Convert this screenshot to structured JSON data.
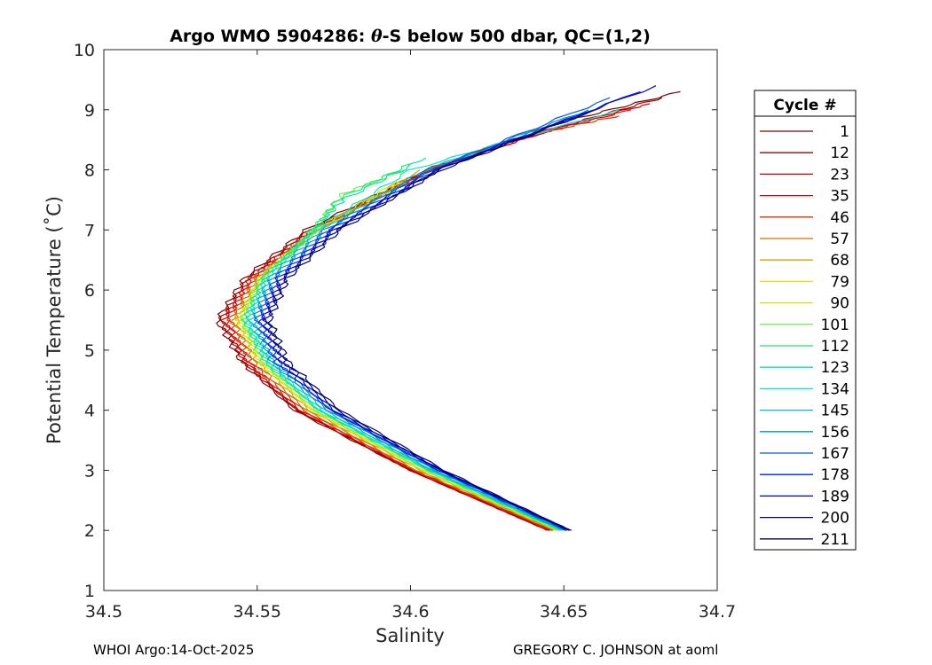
{
  "chart_data": {
    "type": "line",
    "title_parts": [
      "Argo WMO 5904286: ",
      "θ",
      "-S below 500 dbar,  QC=(1,2)"
    ],
    "xlabel": "Salinity",
    "ylabel": "Potential Temperature (˚C)",
    "xlim": [
      34.5,
      34.7
    ],
    "ylim": [
      1,
      10
    ],
    "xticks": [
      34.5,
      34.55,
      34.6,
      34.65,
      34.7
    ],
    "xtick_labels": [
      "34.5",
      "34.55",
      "34.6",
      "34.65",
      "34.7"
    ],
    "yticks": [
      1,
      2,
      3,
      4,
      5,
      6,
      7,
      8,
      9,
      10
    ],
    "ytick_labels": [
      "1",
      "2",
      "3",
      "4",
      "5",
      "6",
      "7",
      "8",
      "9",
      "10"
    ],
    "grid": true,
    "legend_title": "Cycle #",
    "legend_position": "right-outside",
    "series": [
      {
        "name": "1",
        "color": "#7f0000",
        "theta": [
          2.0,
          3.0,
          4.0,
          4.8,
          5.5,
          6.2,
          7.0,
          8.0,
          8.8,
          9.3
        ],
        "salinity": [
          34.645,
          34.6,
          34.562,
          34.545,
          34.537,
          34.546,
          34.566,
          34.605,
          34.65,
          34.688
        ]
      },
      {
        "name": "12",
        "color": "#9f0000",
        "theta": [
          2.0,
          3.0,
          4.0,
          4.8,
          5.5,
          6.2,
          7.0,
          8.0,
          8.7,
          9.2
        ],
        "salinity": [
          34.645,
          34.6,
          34.563,
          34.546,
          34.538,
          34.547,
          34.567,
          34.606,
          34.648,
          34.682
        ]
      },
      {
        "name": "23",
        "color": "#bf0000",
        "theta": [
          2.0,
          3.0,
          4.0,
          4.8,
          5.5,
          6.2,
          7.0,
          8.0,
          8.7,
          9.1
        ],
        "salinity": [
          34.645,
          34.6,
          34.563,
          34.546,
          34.539,
          34.548,
          34.568,
          34.607,
          34.647,
          34.678
        ]
      },
      {
        "name": "35",
        "color": "#df0000",
        "theta": [
          2.0,
          3.0,
          4.0,
          4.8,
          5.5,
          6.2,
          7.0,
          8.0,
          8.6,
          9.0
        ],
        "salinity": [
          34.646,
          34.601,
          34.564,
          34.547,
          34.54,
          34.548,
          34.568,
          34.606,
          34.642,
          34.672
        ]
      },
      {
        "name": "46",
        "color": "#e03000",
        "theta": [
          2.0,
          3.0,
          4.0,
          4.8,
          5.5,
          6.2,
          7.0,
          8.0,
          8.6,
          8.9
        ],
        "salinity": [
          34.646,
          34.601,
          34.565,
          34.548,
          34.541,
          34.549,
          34.569,
          34.607,
          34.641,
          34.668
        ]
      },
      {
        "name": "57",
        "color": "#c87000",
        "theta": [
          2.0,
          3.0,
          4.0,
          4.8,
          5.5,
          6.2,
          7.0,
          8.0,
          8.5
        ],
        "salinity": [
          34.647,
          34.602,
          34.566,
          34.549,
          34.542,
          34.55,
          34.569,
          34.605,
          34.635
        ]
      },
      {
        "name": "68",
        "color": "#d0a000",
        "theta": [
          2.0,
          3.0,
          4.0,
          4.8,
          5.5,
          6.2,
          7.0,
          8.0
        ],
        "salinity": [
          34.647,
          34.603,
          34.567,
          34.55,
          34.543,
          34.551,
          34.57,
          34.603
        ]
      },
      {
        "name": "79",
        "color": "#e8e000",
        "theta": [
          2.0,
          3.0,
          4.0,
          4.8,
          5.5,
          6.2,
          7.0,
          7.8
        ],
        "salinity": [
          34.648,
          34.604,
          34.568,
          34.551,
          34.544,
          34.552,
          34.57,
          34.598
        ]
      },
      {
        "name": "90",
        "color": "#c0f000",
        "theta": [
          2.0,
          3.0,
          4.0,
          4.8,
          5.5,
          6.2,
          7.0,
          7.8
        ],
        "salinity": [
          34.648,
          34.604,
          34.568,
          34.551,
          34.544,
          34.551,
          34.569,
          34.596
        ]
      },
      {
        "name": "101",
        "color": "#70f050",
        "theta": [
          2.0,
          3.0,
          4.0,
          4.8,
          5.5,
          6.2,
          7.0,
          7.6,
          8.0
        ],
        "salinity": [
          34.648,
          34.605,
          34.569,
          34.552,
          34.545,
          34.551,
          34.568,
          34.578,
          34.598
        ]
      },
      {
        "name": "112",
        "color": "#20e870",
        "theta": [
          2.0,
          3.0,
          4.0,
          4.8,
          5.5,
          6.2,
          7.0,
          7.5,
          8.1
        ],
        "salinity": [
          34.649,
          34.606,
          34.57,
          34.553,
          34.546,
          34.552,
          34.569,
          34.576,
          34.6
        ]
      },
      {
        "name": "123",
        "color": "#00e8a0",
        "theta": [
          2.0,
          3.0,
          4.0,
          4.8,
          5.5,
          6.2,
          7.0,
          7.5,
          8.2
        ],
        "salinity": [
          34.649,
          34.606,
          34.57,
          34.553,
          34.546,
          34.553,
          34.568,
          34.578,
          34.605
        ]
      },
      {
        "name": "134",
        "color": "#00e8d0",
        "theta": [
          2.0,
          3.0,
          4.0,
          4.8,
          5.5,
          6.2,
          7.0,
          8.0,
          9.0
        ],
        "salinity": [
          34.65,
          34.607,
          34.571,
          34.554,
          34.547,
          34.553,
          34.569,
          34.6,
          34.668
        ]
      },
      {
        "name": "145",
        "color": "#00b8d8",
        "theta": [
          2.0,
          3.0,
          4.0,
          4.8,
          5.5,
          6.2,
          7.0,
          8.0,
          9.0
        ],
        "salinity": [
          34.65,
          34.607,
          34.572,
          34.555,
          34.548,
          34.554,
          34.571,
          34.605,
          34.66
        ]
      },
      {
        "name": "156",
        "color": "#0090c8",
        "theta": [
          2.0,
          3.0,
          4.0,
          4.8,
          5.5,
          6.2,
          7.0,
          8.0,
          9.0
        ],
        "salinity": [
          34.65,
          34.608,
          34.573,
          34.555,
          34.549,
          34.555,
          34.572,
          34.606,
          34.658
        ]
      },
      {
        "name": "167",
        "color": "#0058e0",
        "theta": [
          2.0,
          3.0,
          4.0,
          4.8,
          5.5,
          6.2,
          7.0,
          8.0,
          9.2
        ],
        "salinity": [
          34.651,
          34.609,
          34.574,
          34.556,
          34.55,
          34.556,
          34.573,
          34.607,
          34.665
        ]
      },
      {
        "name": "178",
        "color": "#0020f0",
        "theta": [
          2.0,
          3.0,
          4.0,
          4.8,
          5.5,
          6.2,
          7.0,
          8.0,
          9.3
        ],
        "salinity": [
          34.651,
          34.609,
          34.574,
          34.557,
          34.551,
          34.557,
          34.574,
          34.608,
          34.675
        ]
      },
      {
        "name": "189",
        "color": "#0000c8",
        "theta": [
          2.0,
          3.0,
          4.0,
          4.8,
          5.5,
          6.2,
          7.0,
          8.0,
          9.4
        ],
        "salinity": [
          34.652,
          34.61,
          34.575,
          34.558,
          34.552,
          34.558,
          34.575,
          34.609,
          34.68
        ]
      },
      {
        "name": "200",
        "color": "#000098",
        "theta": [
          2.0,
          3.0,
          4.0,
          4.8,
          5.5,
          6.2,
          7.0,
          8.0,
          9.0
        ],
        "salinity": [
          34.652,
          34.61,
          34.576,
          34.559,
          34.553,
          34.559,
          34.576,
          34.61,
          34.66
        ]
      },
      {
        "name": "211",
        "color": "#000060",
        "theta": [
          2.0,
          3.0,
          4.0,
          4.8,
          5.5,
          6.2,
          7.0,
          8.0,
          8.8
        ],
        "salinity": [
          34.652,
          34.611,
          34.577,
          34.56,
          34.554,
          34.56,
          34.577,
          34.609,
          34.65
        ]
      }
    ]
  },
  "footer": {
    "left": "WHOI Argo:14-Oct-2025",
    "right": "GREGORY C. JOHNSON at aoml"
  }
}
